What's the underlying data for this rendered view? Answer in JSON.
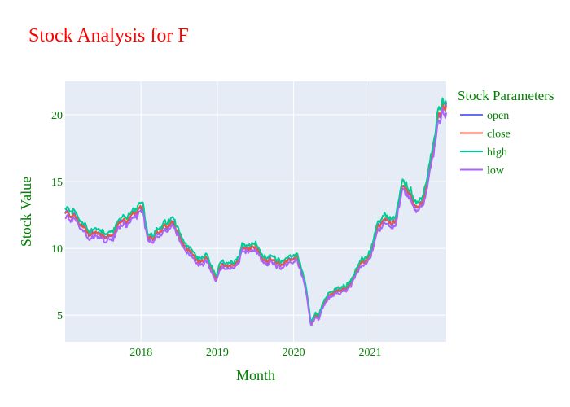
{
  "chart_data": {
    "type": "line",
    "title": "Stock Analysis for F",
    "xlabel": "Month",
    "ylabel": "Stock Value",
    "x_tick_labels": [
      "2018",
      "2019",
      "2020",
      "2021"
    ],
    "y_ticks": [
      5,
      10,
      15,
      20
    ],
    "x_range": [
      "2017-01-03",
      "2021-12-31"
    ],
    "ylim": [
      3,
      22.5
    ],
    "legend": {
      "title": "Stock Parameters",
      "position": "right"
    },
    "grid": true,
    "series_keypoints_close": [
      [
        "2017-01-03",
        12.6
      ],
      [
        "2017-02-15",
        12.5
      ],
      [
        "2017-03-20",
        11.7
      ],
      [
        "2017-05-01",
        11.1
      ],
      [
        "2017-06-15",
        11.2
      ],
      [
        "2017-07-15",
        11.0
      ],
      [
        "2017-08-15",
        10.9
      ],
      [
        "2017-09-10",
        11.6
      ],
      [
        "2017-10-01",
        12.1
      ],
      [
        "2017-11-01",
        12.2
      ],
      [
        "2017-12-20",
        12.7
      ],
      [
        "2018-01-10",
        13.1
      ],
      [
        "2018-02-01",
        10.9
      ],
      [
        "2018-03-01",
        10.9
      ],
      [
        "2018-04-01",
        11.2
      ],
      [
        "2018-05-01",
        11.6
      ],
      [
        "2018-06-01",
        11.9
      ],
      [
        "2018-07-01",
        11.2
      ],
      [
        "2018-08-01",
        10.0
      ],
      [
        "2018-09-01",
        9.6
      ],
      [
        "2018-10-15",
        8.8
      ],
      [
        "2018-11-15",
        9.3
      ],
      [
        "2018-12-24",
        7.6
      ],
      [
        "2019-01-15",
        8.6
      ],
      [
        "2019-02-15",
        8.8
      ],
      [
        "2019-03-15",
        8.8
      ],
      [
        "2019-04-15",
        9.2
      ],
      [
        "2019-05-01",
        10.2
      ],
      [
        "2019-06-01",
        9.9
      ],
      [
        "2019-07-01",
        10.2
      ],
      [
        "2019-08-01",
        9.3
      ],
      [
        "2019-09-01",
        9.2
      ],
      [
        "2019-10-01",
        9.0
      ],
      [
        "2019-11-01",
        8.8
      ],
      [
        "2019-12-01",
        9.1
      ],
      [
        "2020-01-15",
        9.3
      ],
      [
        "2020-02-15",
        8.1
      ],
      [
        "2020-03-05",
        6.5
      ],
      [
        "2020-03-23",
        4.3
      ],
      [
        "2020-04-15",
        5.0
      ],
      [
        "2020-05-01",
        4.8
      ],
      [
        "2020-05-20",
        5.7
      ],
      [
        "2020-06-10",
        6.4
      ],
      [
        "2020-07-01",
        6.6
      ],
      [
        "2020-08-01",
        6.8
      ],
      [
        "2020-09-01",
        6.9
      ],
      [
        "2020-10-01",
        7.5
      ],
      [
        "2020-11-01",
        8.4
      ],
      [
        "2020-12-01",
        8.9
      ],
      [
        "2021-01-05",
        9.6
      ],
      [
        "2021-02-01",
        11.3
      ],
      [
        "2021-03-01",
        12.0
      ],
      [
        "2021-04-01",
        12.0
      ],
      [
        "2021-05-01",
        11.8
      ],
      [
        "2021-06-01",
        14.7
      ],
      [
        "2021-07-01",
        14.2
      ],
      [
        "2021-08-01",
        13.4
      ],
      [
        "2021-09-01",
        13.3
      ],
      [
        "2021-10-01",
        14.8
      ],
      [
        "2021-11-01",
        17.5
      ],
      [
        "2021-11-20",
        19.9
      ],
      [
        "2021-12-10",
        20.4
      ],
      [
        "2021-12-31",
        20.8
      ]
    ],
    "series": [
      {
        "name": "open",
        "color": "#636efa"
      },
      {
        "name": "close",
        "color": "#ef553b"
      },
      {
        "name": "high",
        "color": "#00cc96"
      },
      {
        "name": "low",
        "color": "#ab63fa"
      }
    ]
  }
}
